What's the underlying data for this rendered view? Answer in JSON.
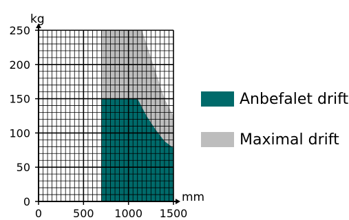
{
  "chart_data": {
    "type": "area",
    "xlabel": "mm",
    "ylabel": "kg",
    "xlim": [
      0,
      1500
    ],
    "ylim": [
      0,
      250
    ],
    "x_ticks": [
      0,
      500,
      1000,
      1500
    ],
    "y_ticks": [
      0,
      50,
      100,
      150,
      200,
      250
    ],
    "grid": true,
    "legend_position": "right",
    "series": [
      {
        "name": "Maximal drift",
        "color": "#bdbdbd",
        "x": [
          700,
          700,
          1150,
          1300,
          1400,
          1500,
          1500
        ],
        "y": [
          0,
          250,
          250,
          190,
          150,
          125,
          0
        ]
      },
      {
        "name": "Anbefalet drift",
        "color": "#006a6a",
        "x": [
          700,
          700,
          1100,
          1200,
          1300,
          1400,
          1500,
          1500
        ],
        "y": [
          0,
          150,
          150,
          125,
          105,
          88,
          78,
          0
        ]
      }
    ],
    "legend": [
      {
        "label": "Anbefalet drift",
        "color": "#006a6a"
      },
      {
        "label": "Maximal drift",
        "color": "#bdbdbd"
      }
    ]
  }
}
